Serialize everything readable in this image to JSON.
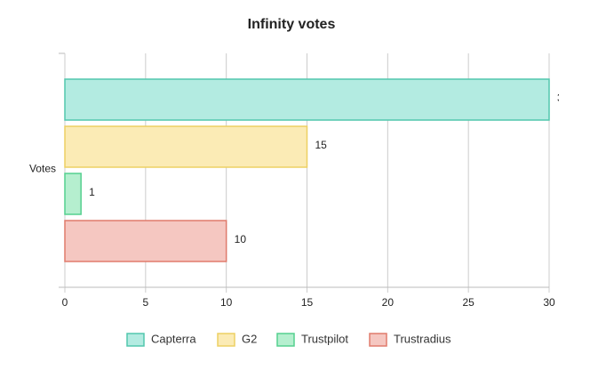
{
  "chart_data": {
    "type": "bar",
    "orientation": "horizontal",
    "title": "Infinity votes",
    "categories": [
      "Votes"
    ],
    "series": [
      {
        "name": "Capterra",
        "color": "#b3ebe1",
        "border": "#52c7ad",
        "values": [
          30
        ]
      },
      {
        "name": "G2",
        "color": "#fbebb5",
        "border": "#edd063",
        "values": [
          15
        ]
      },
      {
        "name": "Trustpilot",
        "color": "#b5efcf",
        "border": "#55d08f",
        "values": [
          1
        ]
      },
      {
        "name": "Trustradius",
        "color": "#f5c7c1",
        "border": "#e07b6c",
        "values": [
          10
        ]
      }
    ],
    "xlim": [
      0,
      30
    ],
    "xticks": [
      0,
      5,
      10,
      15,
      20,
      25,
      30
    ],
    "grid": true,
    "legend": "bottom"
  }
}
